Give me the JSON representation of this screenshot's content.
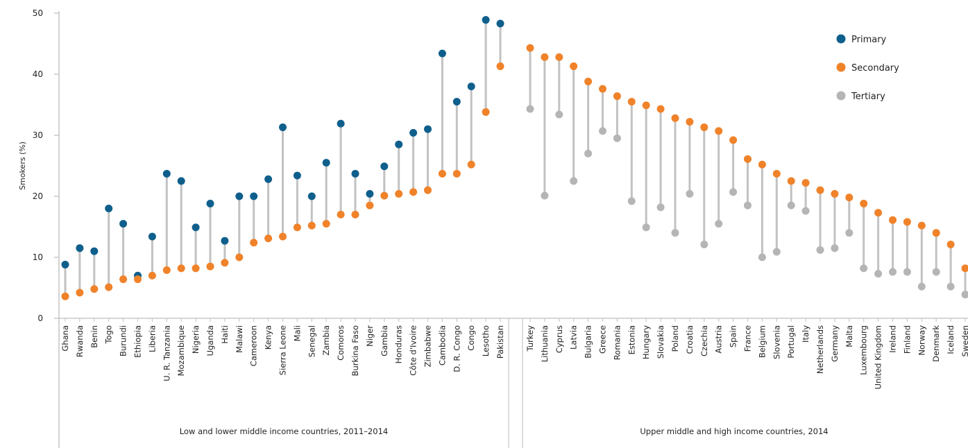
{
  "chart_data": {
    "type": "scatter",
    "ylabel": "Smokers (%)",
    "ylim": [
      0,
      50
    ],
    "yticks": [
      0,
      10,
      20,
      30,
      40,
      50
    ],
    "legend_position": "top-right",
    "colors": {
      "Primary": "#0f5f8c",
      "Secondary": "#f0822a",
      "Tertiary": "#b5b5b5",
      "connector": "#c2c2c2"
    },
    "series": [
      {
        "name": "Primary",
        "group": 0,
        "categories": [
          "Ghana",
          "Rwanda",
          "Benin",
          "Togo",
          "Burundi",
          "Ethiopia",
          "Liberia",
          "U. R. Tanzania",
          "Mozambique",
          "Nigeria",
          "Uganda",
          "Haiti",
          "Malawi",
          "Cameroon",
          "Kenya",
          "Sierra Leone",
          "Mali",
          "Senegal",
          "Zambia",
          "Comoros",
          "Burkina Faso",
          "Niger",
          "Gambia",
          "Honduras",
          "Côte d'Ivoire",
          "Zimbabwe",
          "Cambodia",
          "D. R. Congo",
          "Congo",
          "Lesotho",
          "Pakistan"
        ],
        "values": [
          8.8,
          11.5,
          11.0,
          18.0,
          15.5,
          7.0,
          13.4,
          23.7,
          22.5,
          14.9,
          18.8,
          12.7,
          20.0,
          20.0,
          22.8,
          31.3,
          23.4,
          20.0,
          25.5,
          31.9,
          23.7,
          20.4,
          24.9,
          28.5,
          30.4,
          31.0,
          43.4,
          35.5,
          38.0,
          48.9,
          48.3
        ]
      },
      {
        "name": "Secondary",
        "group": 0,
        "categories": [
          "Ghana",
          "Rwanda",
          "Benin",
          "Togo",
          "Burundi",
          "Ethiopia",
          "Liberia",
          "U. R. Tanzania",
          "Mozambique",
          "Nigeria",
          "Uganda",
          "Haiti",
          "Malawi",
          "Cameroon",
          "Kenya",
          "Sierra Leone",
          "Mali",
          "Senegal",
          "Zambia",
          "Comoros",
          "Burkina Faso",
          "Niger",
          "Gambia",
          "Honduras",
          "Côte d'Ivoire",
          "Zimbabwe",
          "Cambodia",
          "D. R. Congo",
          "Congo",
          "Lesotho",
          "Pakistan"
        ],
        "values": [
          3.6,
          4.2,
          4.8,
          5.1,
          6.4,
          6.4,
          7.0,
          7.9,
          8.2,
          8.2,
          8.5,
          9.1,
          10.0,
          12.4,
          13.1,
          13.4,
          14.9,
          15.2,
          15.5,
          17.0,
          17.0,
          18.5,
          20.1,
          20.4,
          20.7,
          21.0,
          23.7,
          23.7,
          25.2,
          33.8,
          41.3
        ]
      },
      {
        "name": "Secondary",
        "group": 1,
        "categories": [
          "Turkey",
          "Lithuania",
          "Cyprus",
          "Latvia",
          "Bulgaria",
          "Greece",
          "Romania",
          "Estonia",
          "Hungary",
          "Slovakia",
          "Poland",
          "Croatia",
          "Czechia",
          "Austria",
          "Spain",
          "France",
          "Belgium",
          "Slovenia",
          "Portugal",
          "Italy",
          "Netherlands",
          "Germany",
          "Malta",
          "Luxembourg",
          "United Kingdom",
          "Ireland",
          "Finland",
          "Norway",
          "Denmark",
          "Iceland",
          "Sweden"
        ],
        "values": [
          44.3,
          42.8,
          42.8,
          41.3,
          38.8,
          37.6,
          36.4,
          35.5,
          34.9,
          34.3,
          32.8,
          32.2,
          31.3,
          30.7,
          29.2,
          26.1,
          25.2,
          23.7,
          22.5,
          22.2,
          21.0,
          20.4,
          19.8,
          18.8,
          17.3,
          16.1,
          15.8,
          15.2,
          14.0,
          12.1,
          8.2
        ]
      },
      {
        "name": "Tertiary",
        "group": 1,
        "categories": [
          "Turkey",
          "Lithuania",
          "Cyprus",
          "Latvia",
          "Bulgaria",
          "Greece",
          "Romania",
          "Estonia",
          "Hungary",
          "Slovakia",
          "Poland",
          "Croatia",
          "Czechia",
          "Austria",
          "Spain",
          "France",
          "Belgium",
          "Slovenia",
          "Portugal",
          "Italy",
          "Netherlands",
          "Germany",
          "Malta",
          "Luxembourg",
          "United Kingdom",
          "Ireland",
          "Finland",
          "Norway",
          "Denmark",
          "Iceland",
          "Sweden"
        ],
        "values": [
          34.3,
          20.1,
          33.4,
          22.5,
          27.0,
          30.7,
          29.5,
          19.2,
          14.9,
          18.2,
          14.0,
          20.4,
          12.1,
          15.5,
          20.7,
          18.5,
          10.0,
          10.9,
          18.5,
          17.6,
          11.2,
          11.5,
          14.0,
          8.2,
          7.3,
          7.6,
          7.6,
          5.2,
          7.6,
          5.2,
          3.9
        ]
      }
    ],
    "groups": [
      {
        "label": "Low and lower middle income countries, 2011–2014",
        "categories": [
          "Ghana",
          "Rwanda",
          "Benin",
          "Togo",
          "Burundi",
          "Ethiopia",
          "Liberia",
          "U. R. Tanzania",
          "Mozambique",
          "Nigeria",
          "Uganda",
          "Haiti",
          "Malawi",
          "Cameroon",
          "Kenya",
          "Sierra Leone",
          "Mali",
          "Senegal",
          "Zambia",
          "Comoros",
          "Burkina Faso",
          "Niger",
          "Gambia",
          "Honduras",
          "Côte d'Ivoire",
          "Zimbabwe",
          "Cambodia",
          "D. R. Congo",
          "Congo",
          "Lesotho",
          "Pakistan"
        ]
      },
      {
        "label": "Upper middle and high income countries, 2014",
        "categories": [
          "Turkey",
          "Lithuania",
          "Cyprus",
          "Latvia",
          "Bulgaria",
          "Greece",
          "Romania",
          "Estonia",
          "Hungary",
          "Slovakia",
          "Poland",
          "Croatia",
          "Czechia",
          "Austria",
          "Spain",
          "France",
          "Belgium",
          "Slovenia",
          "Portugal",
          "Italy",
          "Netherlands",
          "Germany",
          "Malta",
          "Luxembourg",
          "United Kingdom",
          "Ireland",
          "Finland",
          "Norway",
          "Denmark",
          "Iceland",
          "Sweden"
        ]
      }
    ],
    "legend": [
      {
        "label": "Primary",
        "color": "#0f5f8c"
      },
      {
        "label": "Secondary",
        "color": "#f0822a"
      },
      {
        "label": "Tertiary",
        "color": "#b5b5b5"
      }
    ]
  }
}
